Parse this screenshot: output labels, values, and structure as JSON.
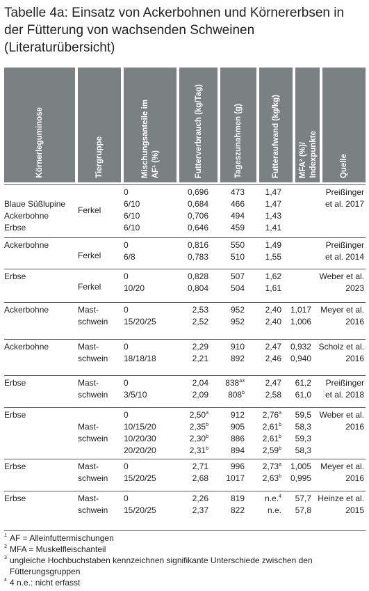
{
  "title": "Tabelle 4a: Einsatz von Ackerbohnen und Körnererbsen in der Fütterung von wachsenden Schweinen (Literaturübersicht)",
  "headers": {
    "col1": "Körnerleguminose",
    "col2": "Tiergruppe",
    "col3a": "Mischungsanteile im",
    "col3b": "AF¹ (%)",
    "col4": "Futterverbrauch (kg/Tag)",
    "col5": "Tageszunahmen (g)",
    "col6": "Futteraufwand (kg/kg)",
    "col7a": "MFA² (%)/",
    "col7b": "Indexpunkte",
    "col8": "Quelle"
  },
  "groups": [
    {
      "legumes": [
        "Blaue Süßlupine",
        "Ackerbohne",
        "Erbse"
      ],
      "animal": [
        "Ferkel"
      ],
      "shares": [
        "0",
        "6/10",
        "6/10",
        "6/10"
      ],
      "feed": [
        "0,696",
        "0,684",
        "0,706",
        "0,646"
      ],
      "gain": [
        "473",
        "466",
        "494",
        "459"
      ],
      "gain_sup": [
        "",
        "",
        "",
        ""
      ],
      "ratio": [
        "1,47",
        "1,47",
        "1,43",
        "1,41"
      ],
      "ratio_sup": [
        "",
        "",
        "",
        ""
      ],
      "mfa": [
        "",
        "",
        "",
        ""
      ],
      "source": [
        "Preißinger",
        "et al. 2017"
      ]
    },
    {
      "legumes": [
        "Ackerbohne"
      ],
      "animal": [
        "Ferkel"
      ],
      "shares": [
        "0",
        "6/8"
      ],
      "feed": [
        "0,816",
        "0,783"
      ],
      "gain": [
        "550",
        "510"
      ],
      "gain_sup": [
        "",
        ""
      ],
      "ratio": [
        "1,49",
        "1,55"
      ],
      "ratio_sup": [
        "",
        ""
      ],
      "mfa": [
        "",
        ""
      ],
      "source": [
        "Preißinger",
        "et al. 2014"
      ]
    },
    {
      "legumes": [
        "Erbse"
      ],
      "animal": [
        "Ferkel"
      ],
      "shares": [
        "0",
        "10/20"
      ],
      "feed": [
        "0,828",
        "0,804"
      ],
      "gain": [
        "507",
        "504"
      ],
      "gain_sup": [
        "",
        ""
      ],
      "ratio": [
        "1,62",
        "1,61"
      ],
      "ratio_sup": [
        "",
        ""
      ],
      "mfa": [
        "",
        ""
      ],
      "source": [
        "Weber et al.",
        "2023"
      ]
    },
    {
      "legumes": [
        "Ackerbohne"
      ],
      "animal": [
        "Mast-",
        "schwein"
      ],
      "shares": [
        "0",
        "15/20/25"
      ],
      "feed": [
        "2,53",
        "2,52"
      ],
      "gain": [
        "952",
        "952"
      ],
      "gain_sup": [
        "",
        ""
      ],
      "ratio": [
        "2,40",
        "2,40"
      ],
      "ratio_sup": [
        "",
        ""
      ],
      "mfa": [
        "1,017",
        "1,006"
      ],
      "source": [
        "Meyer et al.",
        "2016"
      ]
    },
    {
      "legumes": [
        "Ackerbohne"
      ],
      "animal": [
        "Mast-",
        "schwein"
      ],
      "shares": [
        "0",
        "18/18/18"
      ],
      "feed": [
        "2,29",
        "2,21"
      ],
      "gain": [
        "910",
        "892"
      ],
      "gain_sup": [
        "",
        ""
      ],
      "ratio": [
        "2,47",
        "2,46"
      ],
      "ratio_sup": [
        "",
        ""
      ],
      "mfa": [
        "0,932",
        "0,940"
      ],
      "source": [
        "Scholz et al.",
        "2016"
      ]
    },
    {
      "legumes": [
        "Erbse"
      ],
      "animal": [
        "Mast-",
        "schwein"
      ],
      "shares": [
        "0",
        "3/5/10"
      ],
      "feed": [
        "2,04",
        "2,09"
      ],
      "gain": [
        "838",
        "808"
      ],
      "gain_sup": [
        "a3",
        "b"
      ],
      "ratio": [
        "2,47",
        "2,58"
      ],
      "ratio_sup": [
        "",
        ""
      ],
      "mfa": [
        "61,2",
        "61,0"
      ],
      "source": [
        "Preißinger",
        "et al. 2018"
      ]
    },
    {
      "legumes": [
        "Erbse"
      ],
      "animal": [
        "Mast-",
        "schwein"
      ],
      "shares": [
        "0",
        "10/15/20",
        "10/20/30",
        "20/20/20"
      ],
      "feed": [
        "2,50",
        "2,35",
        "2,30",
        "2,31"
      ],
      "feed_sup": [
        "a",
        "b",
        "b",
        "b"
      ],
      "gain": [
        "912",
        "905",
        "886",
        "894"
      ],
      "gain_sup": [
        "",
        "",
        "",
        ""
      ],
      "ratio": [
        "2,76",
        "2,61",
        "2,61",
        "2,59"
      ],
      "ratio_sup": [
        "a",
        "b",
        "b",
        "b"
      ],
      "mfa": [
        "59,5",
        "58,3",
        "59,3",
        "58,3"
      ],
      "source": [
        "Weber et al.",
        "2016"
      ]
    },
    {
      "legumes": [
        "Erbse"
      ],
      "animal": [
        "Mast-",
        "schwein"
      ],
      "shares": [
        "0",
        "15/20/25"
      ],
      "feed": [
        "2,71",
        "2,68"
      ],
      "gain": [
        "996",
        "1017"
      ],
      "gain_sup": [
        "",
        ""
      ],
      "ratio": [
        "2,73",
        "2,63"
      ],
      "ratio_sup": [
        "a",
        "b"
      ],
      "mfa": [
        "1,005",
        "0,995"
      ],
      "source": [
        "Meyer et al.",
        "2016"
      ]
    },
    {
      "legumes": [
        "Erbse"
      ],
      "animal": [
        "Mast-",
        "schwein"
      ],
      "shares": [
        "0",
        "15/20/25"
      ],
      "feed": [
        "2,26",
        "2,37"
      ],
      "gain": [
        "819",
        "822"
      ],
      "gain_sup": [
        "",
        ""
      ],
      "ratio": [
        "n.e.",
        "n.e."
      ],
      "ratio_sup": [
        "4",
        ""
      ],
      "mfa": [
        "57,7",
        "57,8"
      ],
      "source": [
        "Heinze et al.",
        "2015"
      ]
    }
  ],
  "footnotes": [
    {
      "mark": "1",
      "lines": [
        "AF = Alleinfuttermischungen"
      ]
    },
    {
      "mark": "2",
      "lines": [
        "MFA = Muskelfleischanteil"
      ]
    },
    {
      "mark": "3",
      "lines": [
        "ungleiche Hochbuchstaben kennzeichnen signifikante Unterschiede zwischen den",
        "Fütterungsgruppen"
      ]
    },
    {
      "mark": "4",
      "lines": [
        "4 n.e.: nicht erfasst"
      ]
    }
  ]
}
